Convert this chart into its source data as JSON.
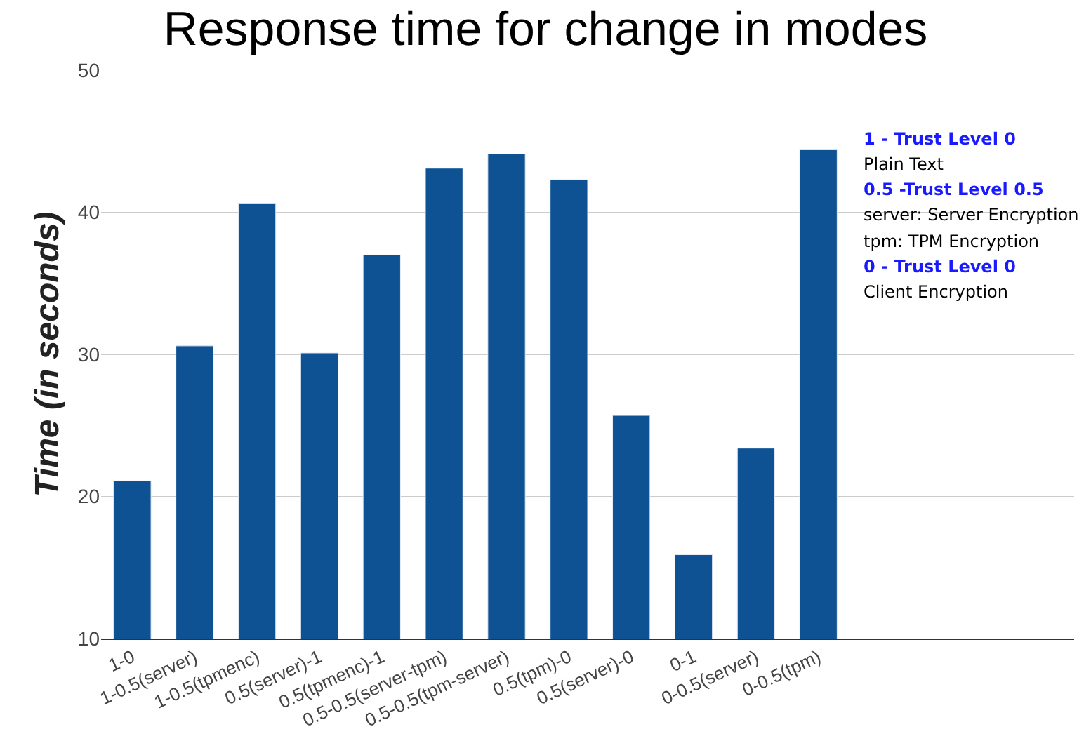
{
  "chart_data": {
    "type": "bar",
    "title": "Response time for change in modes",
    "ylabel": "Time (in seconds)",
    "categories": [
      "1-0",
      "1-0.5(server)",
      "1-0.5(tpmenc)",
      "0.5(server)-1",
      "0.5(tpmenc)-1",
      "0.5-0.5(server-tpm)",
      "0.5-0.5(tpm-server)",
      "0.5(tpm)-0",
      "0.5(server)-0",
      "0-1",
      "0-0.5(server)",
      "0-0.5(tpm)"
    ],
    "values": [
      21.1,
      30.6,
      40.6,
      30.1,
      37.0,
      43.1,
      44.1,
      42.3,
      25.7,
      15.9,
      23.4,
      44.4
    ],
    "color": "#0f5294",
    "ylim": [
      10,
      50
    ],
    "yticks": [
      10,
      20,
      30,
      40,
      50
    ],
    "grid": "y",
    "annotations": [
      "1 - Trust Level 0",
      "Plain Text",
      "0.5 -Trust Level 0.5",
      "server: Server Encryption",
      "tpm: TPM Encryption",
      "0 - Trust Level 0",
      "Client Encryption"
    ]
  }
}
